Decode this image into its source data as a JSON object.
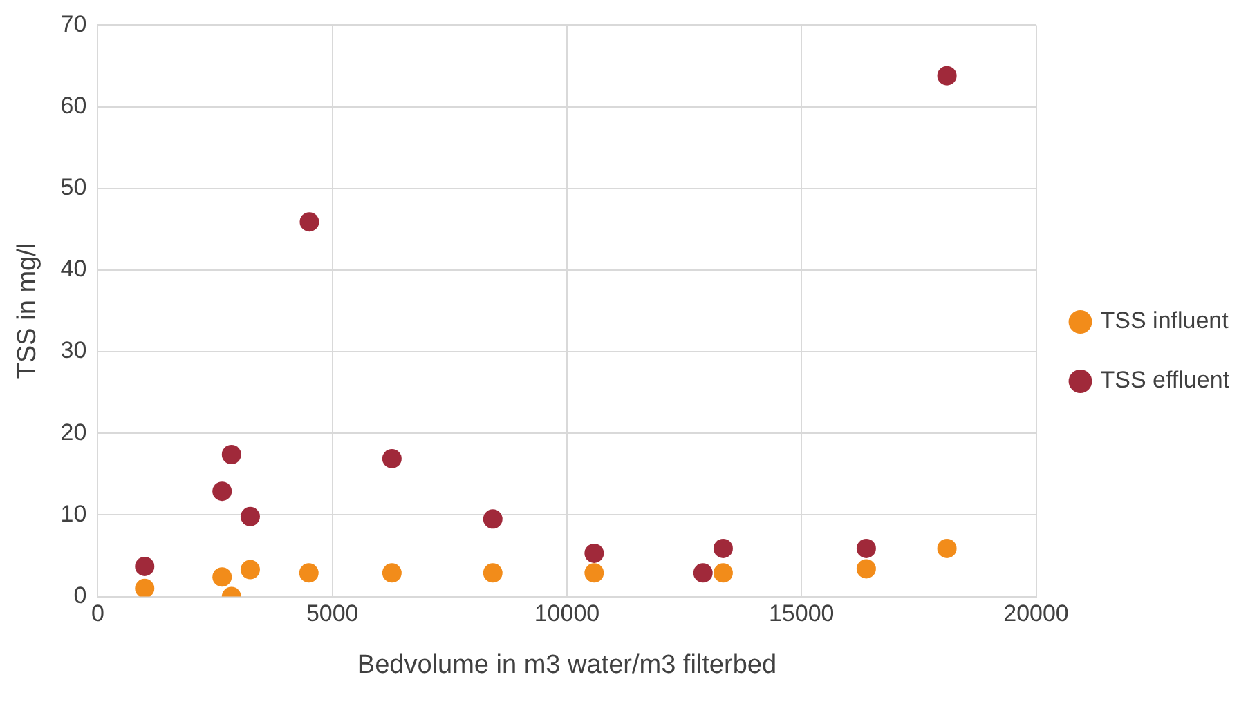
{
  "chart_data": {
    "type": "scatter",
    "xlabel": "Bedvolume in m3 water/m3 filterbed",
    "ylabel": "TSS in mg/l",
    "xlim": [
      0,
      20000
    ],
    "xticks": [
      0,
      5000,
      10000,
      15000,
      20000
    ],
    "ylim": [
      0,
      70
    ],
    "yticks": [
      0,
      10,
      20,
      30,
      40,
      50,
      60,
      70
    ],
    "grid": true,
    "legend": "right",
    "marker": "circle",
    "series": [
      {
        "name": "TSS influent",
        "color": "#f28c1a",
        "x": [
          1000,
          2650,
          2850,
          3250,
          4500,
          6270,
          8420,
          10580,
          13330,
          16380,
          18100
        ],
        "values": [
          1.0,
          2.4,
          0,
          3.3,
          2.9,
          2.9,
          2.9,
          2.9,
          2.9,
          3.4,
          5.9
        ]
      },
      {
        "name": "TSS effluent",
        "color": "#a0293a",
        "x": [
          1000,
          2650,
          2850,
          3250,
          4510,
          6270,
          8420,
          10580,
          12900,
          13330,
          16380,
          18100
        ],
        "values": [
          3.7,
          12.9,
          17.4,
          9.8,
          45.9,
          16.9,
          9.5,
          5.3,
          2.9,
          5.9,
          5.9,
          63.8
        ]
      }
    ]
  }
}
